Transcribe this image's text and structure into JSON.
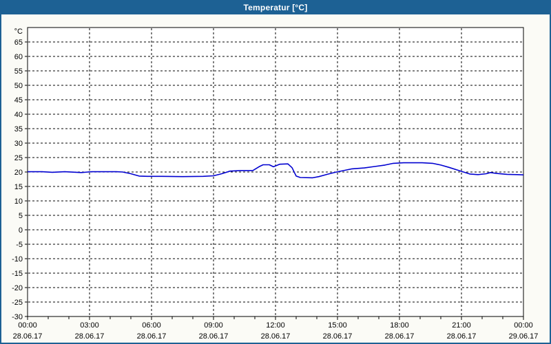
{
  "window": {
    "title": "Temperatur [°C]",
    "titlebar_color": "#1d6194",
    "body_background": "#fbfbf6",
    "plot_background": "#ffffff"
  },
  "chart_data": {
    "type": "line",
    "title": "Temperatur [°C]",
    "ylabel": "°C",
    "xlabel": "",
    "ylim": [
      -30,
      70
    ],
    "ytick_step": 5,
    "yticks": [
      65,
      60,
      55,
      50,
      45,
      40,
      35,
      30,
      25,
      20,
      15,
      10,
      5,
      0,
      -5,
      -10,
      -15,
      -20,
      -25,
      -30
    ],
    "xlim_hours": [
      0,
      24
    ],
    "xtick_step_hours": 3,
    "minor_xtick_step_hours": 1,
    "grid": "dashed",
    "legend_position": "none",
    "line_color": "#0000d0",
    "grid_color": "#000000",
    "axis_color": "#000000",
    "xticks": [
      {
        "h": 0,
        "time": "00:00",
        "date": "28.06.17"
      },
      {
        "h": 3,
        "time": "03:00",
        "date": "28.06.17"
      },
      {
        "h": 6,
        "time": "06:00",
        "date": "28.06.17"
      },
      {
        "h": 9,
        "time": "09:00",
        "date": "28.06.17"
      },
      {
        "h": 12,
        "time": "12:00",
        "date": "28.06.17"
      },
      {
        "h": 15,
        "time": "15:00",
        "date": "28.06.17"
      },
      {
        "h": 18,
        "time": "18:00",
        "date": "28.06.17"
      },
      {
        "h": 21,
        "time": "21:00",
        "date": "28.06.17"
      },
      {
        "h": 24,
        "time": "00:00",
        "date": "29.06.17"
      }
    ],
    "series": [
      {
        "name": "Temperatur",
        "points": [
          [
            0.0,
            20.1
          ],
          [
            0.7,
            20.1
          ],
          [
            1.2,
            19.9
          ],
          [
            1.8,
            20.1
          ],
          [
            2.6,
            19.8
          ],
          [
            3.1,
            20.1
          ],
          [
            4.3,
            20.1
          ],
          [
            4.6,
            20.0
          ],
          [
            5.0,
            19.4
          ],
          [
            5.4,
            18.6
          ],
          [
            5.8,
            18.5
          ],
          [
            6.5,
            18.5
          ],
          [
            7.5,
            18.4
          ],
          [
            8.5,
            18.5
          ],
          [
            9.0,
            18.7
          ],
          [
            9.4,
            19.4
          ],
          [
            9.8,
            20.3
          ],
          [
            10.3,
            20.5
          ],
          [
            10.9,
            20.5
          ],
          [
            11.2,
            21.8
          ],
          [
            11.4,
            22.5
          ],
          [
            11.7,
            22.5
          ],
          [
            11.9,
            21.8
          ],
          [
            12.2,
            22.7
          ],
          [
            12.6,
            22.8
          ],
          [
            12.8,
            21.5
          ],
          [
            13.0,
            18.6
          ],
          [
            13.2,
            18.1
          ],
          [
            13.8,
            18.0
          ],
          [
            14.1,
            18.4
          ],
          [
            14.5,
            19.2
          ],
          [
            14.9,
            19.9
          ],
          [
            15.3,
            20.5
          ],
          [
            15.7,
            21.1
          ],
          [
            16.3,
            21.4
          ],
          [
            16.8,
            21.9
          ],
          [
            17.3,
            22.4
          ],
          [
            17.7,
            23.0
          ],
          [
            18.2,
            23.2
          ],
          [
            19.1,
            23.2
          ],
          [
            19.6,
            23.0
          ],
          [
            20.0,
            22.4
          ],
          [
            20.4,
            21.6
          ],
          [
            20.8,
            20.7
          ],
          [
            21.1,
            20.0
          ],
          [
            21.4,
            19.3
          ],
          [
            21.8,
            19.1
          ],
          [
            22.2,
            19.4
          ],
          [
            22.4,
            19.8
          ],
          [
            22.7,
            19.5
          ],
          [
            23.2,
            19.2
          ],
          [
            23.7,
            19.1
          ],
          [
            24.0,
            19.0
          ]
        ]
      }
    ]
  }
}
